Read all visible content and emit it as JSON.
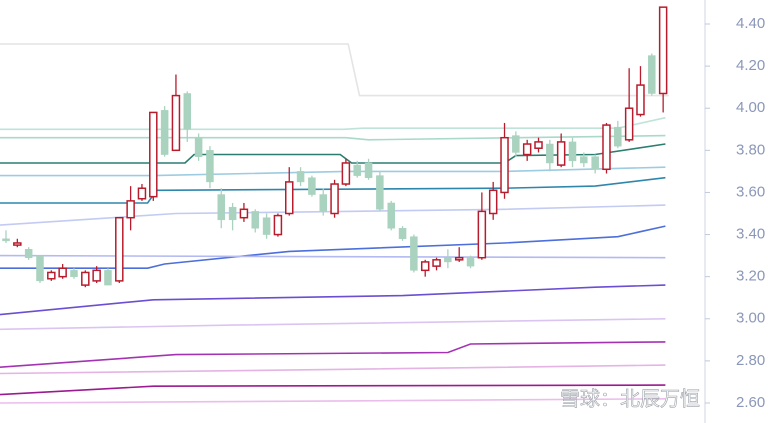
{
  "chart_data": {
    "type": "candlestick",
    "watermark": "雪球：北辰万恒",
    "ylim": [
      2.505,
      4.514
    ],
    "yticks": [
      {
        "value": 4.4,
        "label": "4.40"
      },
      {
        "value": 4.2,
        "label": "4.20"
      },
      {
        "value": 4.0,
        "label": "4.00"
      },
      {
        "value": 3.8,
        "label": "3.80"
      },
      {
        "value": 3.6,
        "label": "3.60"
      },
      {
        "value": 3.4,
        "label": "3.40"
      },
      {
        "value": 3.2,
        "label": "3.20"
      },
      {
        "value": 3.0,
        "label": "3.00"
      },
      {
        "value": 2.8,
        "label": "2.80"
      },
      {
        "value": 2.6,
        "label": "2.60"
      }
    ],
    "up_color": "#b81c2c",
    "down_color": "#a9d2bf",
    "open": [
      3.38,
      3.35,
      3.33,
      3.3,
      3.19,
      3.2,
      3.23,
      3.16,
      3.18,
      3.23,
      3.18,
      3.48,
      3.57,
      3.58,
      3.99,
      3.8,
      4.07,
      3.86,
      3.8,
      3.59,
      3.53,
      3.48,
      3.51,
      3.48,
      3.4,
      3.5,
      3.7,
      3.67,
      3.59,
      3.5,
      3.64,
      3.73,
      3.74,
      3.68,
      3.55,
      3.43,
      3.39,
      3.23,
      3.25,
      3.29,
      3.28,
      3.29,
      3.29,
      3.5,
      3.6,
      3.87,
      3.78,
      3.81,
      3.83,
      3.73,
      3.84,
      3.77,
      3.77,
      3.71,
      3.91,
      3.85,
      3.97,
      4.25,
      4.07
    ],
    "high": [
      3.42,
      3.38,
      3.34,
      3.3,
      3.23,
      3.26,
      3.24,
      3.23,
      3.25,
      3.24,
      3.48,
      3.63,
      3.64,
      3.98,
      4.01,
      4.16,
      4.08,
      3.88,
      3.82,
      3.62,
      3.55,
      3.55,
      3.52,
      3.5,
      3.5,
      3.72,
      3.72,
      3.68,
      3.62,
      3.66,
      3.76,
      3.75,
      3.76,
      3.7,
      3.56,
      3.44,
      3.4,
      3.28,
      3.29,
      3.33,
      3.34,
      3.3,
      3.6,
      3.65,
      3.93,
      3.89,
      3.85,
      3.86,
      3.85,
      3.88,
      3.86,
      3.79,
      3.78,
      3.93,
      3.94,
      4.19,
      4.2,
      4.26,
      4.48
    ],
    "low": [
      3.36,
      3.34,
      3.28,
      3.17,
      3.18,
      3.19,
      3.19,
      3.15,
      3.17,
      3.16,
      3.17,
      3.42,
      3.56,
      3.56,
      3.77,
      3.8,
      3.84,
      3.75,
      3.62,
      3.43,
      3.42,
      3.46,
      3.41,
      3.38,
      3.39,
      3.49,
      3.63,
      3.58,
      3.49,
      3.48,
      3.63,
      3.67,
      3.66,
      3.51,
      3.42,
      3.37,
      3.22,
      3.2,
      3.23,
      3.24,
      3.27,
      3.24,
      3.28,
      3.47,
      3.57,
      3.77,
      3.75,
      3.79,
      3.7,
      3.72,
      3.72,
      3.72,
      3.69,
      3.69,
      3.81,
      3.84,
      3.96,
      4.06,
      3.98
    ],
    "close": [
      3.37,
      3.36,
      3.29,
      3.18,
      3.22,
      3.24,
      3.2,
      3.22,
      3.23,
      3.16,
      3.48,
      3.56,
      3.62,
      3.98,
      3.78,
      4.06,
      3.9,
      3.77,
      3.65,
      3.47,
      3.47,
      3.52,
      3.43,
      3.4,
      3.49,
      3.65,
      3.65,
      3.59,
      3.51,
      3.64,
      3.74,
      3.68,
      3.67,
      3.52,
      3.43,
      3.38,
      3.23,
      3.27,
      3.28,
      3.27,
      3.29,
      3.25,
      3.51,
      3.61,
      3.86,
      3.79,
      3.83,
      3.84,
      3.74,
      3.84,
      3.75,
      3.74,
      3.71,
      3.92,
      3.82,
      4.0,
      4.11,
      4.07,
      4.48
    ],
    "lines": [
      {
        "color": "#e4e4e4",
        "x": [
          -0.6,
          30.2,
          31.2,
          58.5
        ],
        "values": [
          4.305,
          4.305,
          4.06,
          4.06
        ]
      },
      {
        "color": "#bfe3d8",
        "x": [
          -0.6,
          29.8,
          31.5,
          54,
          58.2
        ],
        "values": [
          3.9,
          3.9,
          3.905,
          3.905,
          3.955
        ]
      },
      {
        "color": "#a9d9c9",
        "x": [
          -0.6,
          30,
          32,
          58.2
        ],
        "values": [
          3.86,
          3.86,
          3.85,
          3.87
        ]
      },
      {
        "color": "#2b7d70",
        "x": [
          -0.6,
          15.8,
          16.6,
          29.5,
          30.5,
          44,
          45,
          52,
          58.2
        ],
        "values": [
          3.74,
          3.74,
          3.78,
          3.78,
          3.74,
          3.74,
          3.775,
          3.78,
          3.83
        ]
      },
      {
        "color": "#9ccbe2",
        "x": [
          -0.6,
          13,
          30,
          44,
          58.2
        ],
        "values": [
          3.68,
          3.68,
          3.7,
          3.7,
          3.72
        ]
      },
      {
        "color": "#2f86ad",
        "x": [
          -0.6,
          12.5,
          13.3,
          44,
          52,
          58.2
        ],
        "values": [
          3.55,
          3.55,
          3.61,
          3.62,
          3.63,
          3.67
        ]
      },
      {
        "color": "#c3cbf2",
        "x": [
          -0.6,
          15,
          30,
          44,
          58.2
        ],
        "values": [
          3.445,
          3.5,
          3.51,
          3.52,
          3.54
        ]
      },
      {
        "color": "#4c6fdb",
        "x": [
          -0.6,
          12.5,
          14,
          25,
          44,
          54,
          58.2
        ],
        "values": [
          3.24,
          3.24,
          3.26,
          3.32,
          3.36,
          3.39,
          3.44
        ]
      },
      {
        "color": "#b3baf1",
        "x": [
          -0.6,
          58.2
        ],
        "values": [
          3.3,
          3.29
        ]
      },
      {
        "color": "#6b4ed2",
        "x": [
          -0.6,
          13,
          35,
          52,
          58.2
        ],
        "values": [
          3.02,
          3.09,
          3.11,
          3.15,
          3.16
        ]
      },
      {
        "color": "#dcc4f2",
        "x": [
          -0.6,
          20,
          58.2
        ],
        "values": [
          2.95,
          2.97,
          3.0
        ]
      },
      {
        "color": "#a433b3",
        "x": [
          -0.6,
          15,
          39,
          41,
          58.2
        ],
        "values": [
          2.77,
          2.83,
          2.84,
          2.88,
          2.89
        ]
      },
      {
        "color": "#e4b4e4",
        "x": [
          -0.6,
          30,
          58.2
        ],
        "values": [
          2.74,
          2.76,
          2.78
        ]
      },
      {
        "color": "#9c1a90",
        "x": [
          -0.6,
          13,
          58.2
        ],
        "values": [
          2.64,
          2.68,
          2.685
        ]
      },
      {
        "color": "#ebbdeb",
        "x": [
          -0.6,
          30,
          58.2
        ],
        "values": [
          2.6,
          2.61,
          2.62
        ]
      }
    ]
  }
}
